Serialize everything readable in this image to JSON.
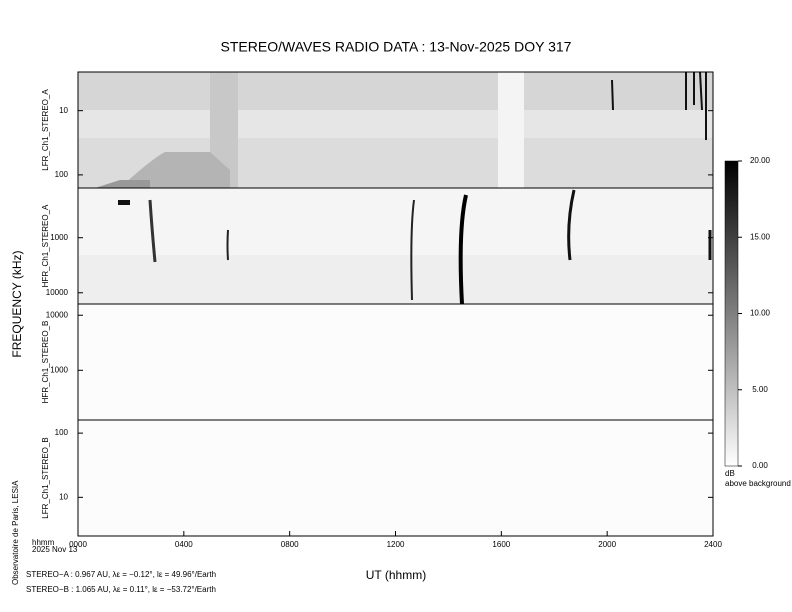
{
  "chart_data": {
    "type": "spectrogram",
    "title": "STEREO/WAVES  RADIO  DATA : 13-Nov-2025  DOY 317",
    "y_label": "FREQUENCY (kHz)",
    "x_label": "UT (hhmm)",
    "xlim": [
      0,
      24
    ],
    "xticks": [
      {
        "value": 0,
        "label": "0000"
      },
      {
        "value": 4,
        "label": "0400"
      },
      {
        "value": 8,
        "label": "0800"
      },
      {
        "value": 12,
        "label": "1200"
      },
      {
        "value": 16,
        "label": "1600"
      },
      {
        "value": 20,
        "label": "2000"
      },
      {
        "value": 24,
        "label": "2400"
      }
    ],
    "x_unit": "hhmm",
    "date": "2025 Nov 13",
    "credit": "Observatoire de Paris, LESIA",
    "log_scale": true,
    "panels": [
      {
        "name": "LFR_Ch1_STEREO_A",
        "ylim": [
          2.5,
          160
        ],
        "yticks": [
          10,
          100
        ]
      },
      {
        "name": "HFR_Ch1_STEREO_A",
        "ylim": [
          125,
          16000
        ],
        "yticks": [
          1000,
          10000
        ]
      },
      {
        "name": "HFR_Ch1_STEREO_B",
        "ylim": [
          16000,
          125
        ],
        "yticks": [
          10000,
          1000
        ]
      },
      {
        "name": "LFR_Ch1_STEREO_B",
        "ylim": [
          160,
          2.5
        ],
        "yticks": [
          100,
          10
        ]
      }
    ],
    "colorbar": {
      "lim": [
        0,
        20
      ],
      "ticks": [
        {
          "value": 20,
          "label": "20.00"
        },
        {
          "value": 15,
          "label": "15.00"
        },
        {
          "value": 10,
          "label": "10.00"
        },
        {
          "value": 5,
          "label": "5.00"
        },
        {
          "value": 0,
          "label": "0.00"
        }
      ],
      "unit": "dB",
      "caption": "above background"
    },
    "footer": [
      "STEREO−A : 0.967 AU, λε = −0.12°, lε = 49.96°/Earth",
      "STEREO−B : 1.065 AU, λε = 0.11°, lε = −53.72°/Earth"
    ]
  }
}
